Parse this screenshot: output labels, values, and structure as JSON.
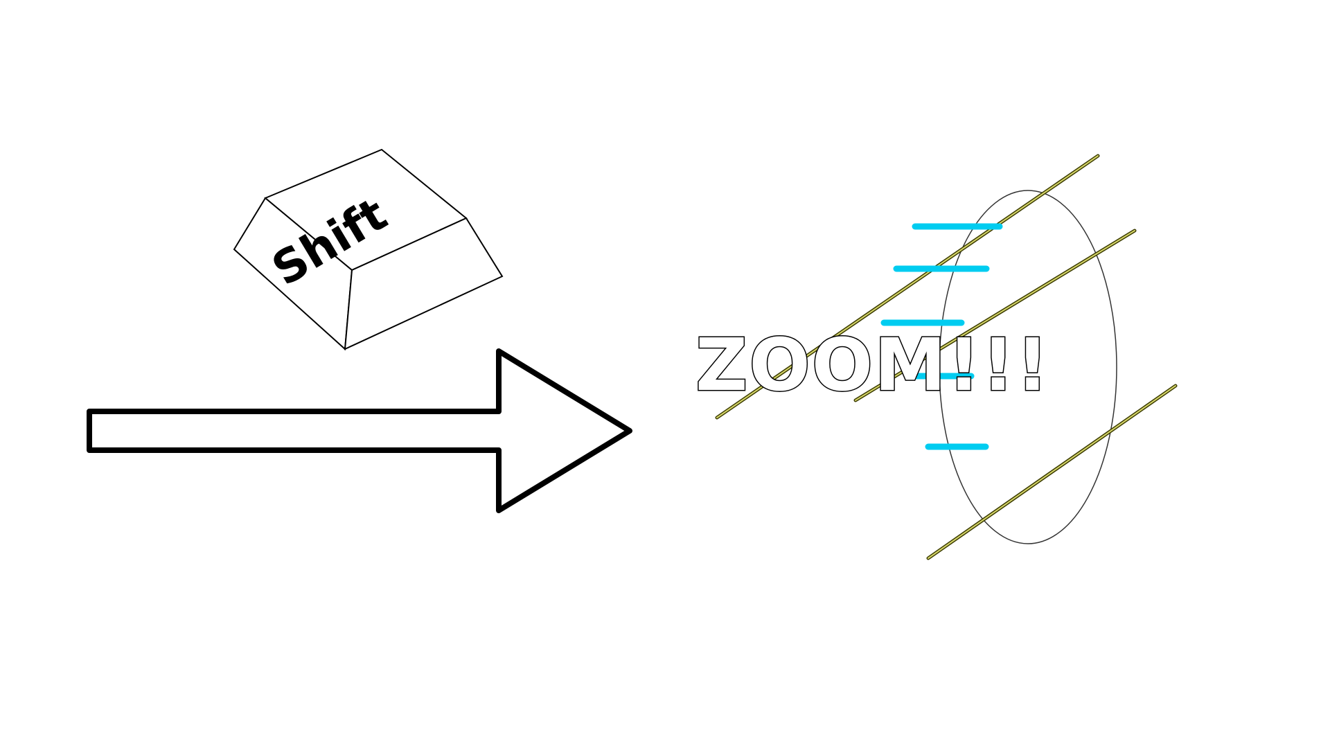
{
  "diagram": {
    "key": {
      "label": "Shift"
    },
    "effect": {
      "label": "ZOOM!!!"
    },
    "colors": {
      "outline": "#000000",
      "speed_lines": "#00ccf0",
      "streak_fill": "#d6d66a",
      "streak_outline": "#3a3a00",
      "background": "#ffffff"
    },
    "icons": [
      "keycap-icon",
      "right-arrow-icon",
      "speed-lines-icon",
      "zoom-burst-icon"
    ]
  }
}
